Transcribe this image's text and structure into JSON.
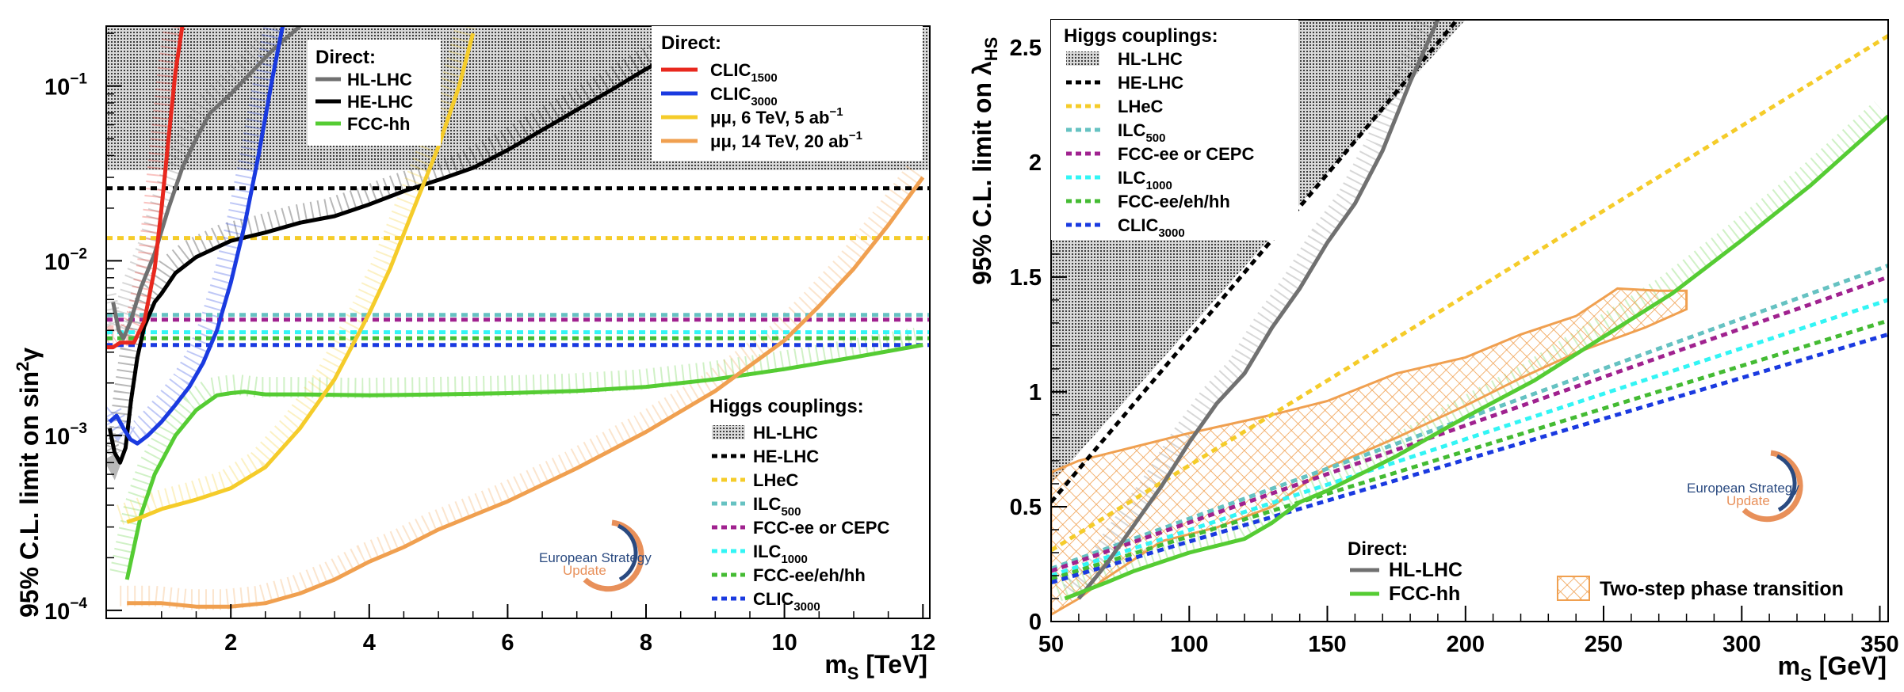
{
  "chart_data": [
    {
      "type": "line",
      "scale_y": "log",
      "xlabel": "m_S [TeV]",
      "ylabel": "95% C.L. limit on sin²γ",
      "xlim": [
        0.2,
        12.1
      ],
      "ylim": [
        9e-05,
        0.22
      ],
      "x_ticks": [
        2,
        4,
        6,
        8,
        10,
        12
      ],
      "x_tick_labels": [
        "2",
        "4",
        "6",
        "8",
        "10",
        "12"
      ],
      "y_ticks": [
        0.0001,
        0.001,
        0.01,
        0.1
      ],
      "y_tick_labels": [
        "10",
        "10",
        "10",
        "10"
      ],
      "y_tick_exponents": [
        "−4",
        "−3",
        "−2",
        "−1"
      ],
      "hllhc_band_min": 0.033,
      "direct_series": [
        {
          "name": "HL-LHC",
          "color": "#707070",
          "x": [
            0.3,
            0.38,
            0.45,
            0.55,
            0.7,
            0.9,
            1.1,
            1.3,
            1.5,
            1.7,
            2.0,
            2.3,
            2.6,
            3.0
          ],
          "values": [
            0.0058,
            0.004,
            0.0036,
            0.0045,
            0.007,
            0.011,
            0.02,
            0.034,
            0.05,
            0.07,
            0.09,
            0.12,
            0.16,
            0.22
          ]
        },
        {
          "name": "HE-LHC",
          "color": "#000000",
          "x": [
            0.25,
            0.32,
            0.4,
            0.48,
            0.56,
            0.65,
            0.75,
            0.9,
            1.0,
            1.2,
            1.5,
            2.0,
            2.5,
            3.0,
            3.5,
            4.0,
            4.5,
            5.0,
            5.5,
            6.0,
            6.5,
            7.0,
            7.5,
            8.0,
            8.5,
            9.0,
            9.3
          ],
          "values": [
            0.0011,
            0.0008,
            0.0007,
            0.00085,
            0.0016,
            0.0028,
            0.0042,
            0.0058,
            0.0065,
            0.0085,
            0.0105,
            0.013,
            0.0145,
            0.0165,
            0.018,
            0.021,
            0.025,
            0.029,
            0.034,
            0.043,
            0.056,
            0.073,
            0.095,
            0.125,
            0.16,
            0.2,
            0.22
          ]
        },
        {
          "name": "FCC-hh",
          "color": "#55cc33",
          "x": [
            0.5,
            0.7,
            0.9,
            1.2,
            1.5,
            1.8,
            2.0,
            2.2,
            2.5,
            3.0,
            4.0,
            5.0,
            6.0,
            7.0,
            8.0,
            9.0,
            10.0,
            11.0,
            12.0
          ],
          "values": [
            0.00015,
            0.00035,
            0.0006,
            0.001,
            0.0014,
            0.0017,
            0.00175,
            0.00178,
            0.00172,
            0.00172,
            0.0017,
            0.00172,
            0.00175,
            0.0018,
            0.0019,
            0.0021,
            0.0024,
            0.0028,
            0.0033
          ]
        }
      ],
      "direct_future": [
        {
          "name": "CLIC",
          "sub": "1500",
          "color": "#e8281e",
          "x": [
            0.2,
            0.3,
            0.4,
            0.5,
            0.6,
            0.75,
            0.9,
            1.0,
            1.1,
            1.2,
            1.3
          ],
          "values": [
            0.0032,
            0.0032,
            0.0034,
            0.0034,
            0.0034,
            0.0045,
            0.009,
            0.02,
            0.05,
            0.12,
            0.22
          ]
        },
        {
          "name": "CLIC",
          "sub": "3000",
          "color": "#1a3ae0",
          "x": [
            0.25,
            0.35,
            0.45,
            0.55,
            0.65,
            0.8,
            1.0,
            1.2,
            1.4,
            1.6,
            1.8,
            2.0,
            2.2,
            2.4,
            2.6,
            2.75
          ],
          "values": [
            0.0012,
            0.0013,
            0.0011,
            0.00095,
            0.0009,
            0.001,
            0.0012,
            0.0015,
            0.0019,
            0.0026,
            0.004,
            0.0075,
            0.016,
            0.04,
            0.11,
            0.22
          ]
        },
        {
          "name": "μμ, 6 TeV, 5 ab",
          "sup": "−1",
          "color": "#f5cc2a",
          "x": [
            0.5,
            0.7,
            1.0,
            1.5,
            2.0,
            2.5,
            3.0,
            3.5,
            4.0,
            4.3,
            4.6,
            5.0,
            5.3,
            5.5
          ],
          "values": [
            0.00032,
            0.00034,
            0.00038,
            0.00043,
            0.0005,
            0.00066,
            0.0011,
            0.0021,
            0.005,
            0.009,
            0.018,
            0.045,
            0.1,
            0.2
          ]
        },
        {
          "name": "μμ, 14 TeV, 20 ab",
          "sup": "−1",
          "color": "#f0a050",
          "x": [
            0.5,
            0.8,
            1.0,
            1.5,
            2.0,
            2.5,
            3.0,
            3.5,
            4.0,
            4.5,
            5.0,
            6.0,
            7.0,
            8.0,
            9.0,
            10.0,
            10.5,
            11.0,
            11.5,
            12.0
          ],
          "values": [
            0.00011,
            0.00011,
            0.00011,
            0.000105,
            0.000105,
            0.00011,
            0.000125,
            0.00015,
            0.00019,
            0.00023,
            0.00029,
            0.00042,
            0.00065,
            0.00105,
            0.0018,
            0.0035,
            0.0055,
            0.009,
            0.016,
            0.03
          ]
        }
      ],
      "coupling_series": [
        {
          "name": "HE-LHC",
          "color": "#000000",
          "value": 0.026
        },
        {
          "name": "LHeC",
          "color": "#f5cc2a",
          "value": 0.0135
        },
        {
          "name": "ILC",
          "sub": "500",
          "color": "#66c2c2",
          "value": 0.0049
        },
        {
          "name": "FCC-ee or CEPC",
          "color": "#a0228f",
          "value": 0.0046
        },
        {
          "name": "ILC",
          "sub": "1000",
          "color": "#33f5f5",
          "value": 0.0039
        },
        {
          "name": "FCC-ee/eh/hh",
          "color": "#44bb33",
          "value": 0.0036
        },
        {
          "name": "CLIC",
          "sub": "3000",
          "color": "#1a3ae0",
          "value": 0.0033
        }
      ],
      "legend_direct_title": "Direct:",
      "legend_direct_hl": [
        {
          "name": "HL-LHC",
          "color": "#707070"
        },
        {
          "name": "HE-LHC",
          "color": "#000000"
        },
        {
          "name": "FCC-hh",
          "color": "#55cc33"
        }
      ],
      "legend_direct_future_title": "Direct:",
      "legend_couplings_title": "Higgs couplings:",
      "legend_couplings_band": "HL-LHC"
    },
    {
      "type": "line",
      "xlabel": "m_S [GeV]",
      "ylabel": "95% C.L. limit on λ_HS",
      "xlim": [
        50,
        353
      ],
      "ylim": [
        0,
        2.62
      ],
      "x_ticks": [
        50,
        100,
        150,
        200,
        250,
        300,
        350
      ],
      "x_tick_labels": [
        "50",
        "100",
        "150",
        "200",
        "250",
        "300",
        "350"
      ],
      "y_ticks": [
        0,
        0.5,
        1,
        1.5,
        2,
        2.5
      ],
      "y_tick_labels": [
        "0",
        "0.5",
        "1",
        "1.5",
        "2",
        "2.5"
      ],
      "hllhc_band_boundary": [
        [
          50,
          0.6
        ],
        [
          150,
          1.95
        ],
        [
          200,
          2.62
        ]
      ],
      "coupling_series": [
        {
          "name": "HE-LHC",
          "color": "#000000",
          "x": [
            50,
            197
          ],
          "values": [
            0.52,
            2.62
          ]
        },
        {
          "name": "LHeC",
          "color": "#f5cc2a",
          "x": [
            50,
            353
          ],
          "values": [
            0.31,
            2.55
          ]
        },
        {
          "name": "ILC",
          "sub": "500",
          "color": "#66c2c2",
          "x": [
            50,
            353
          ],
          "values": [
            0.23,
            1.55
          ]
        },
        {
          "name": "FCC-ee or CEPC",
          "color": "#a0228f",
          "x": [
            50,
            353
          ],
          "values": [
            0.22,
            1.5
          ]
        },
        {
          "name": "ILC",
          "sub": "1000",
          "color": "#33f5f5",
          "x": [
            50,
            353
          ],
          "values": [
            0.2,
            1.4
          ]
        },
        {
          "name": "FCC-ee/eh/hh",
          "color": "#44bb33",
          "x": [
            50,
            353
          ],
          "values": [
            0.185,
            1.31
          ]
        },
        {
          "name": "CLIC",
          "sub": "3000",
          "color": "#1a3ae0",
          "x": [
            50,
            353
          ],
          "values": [
            0.17,
            1.25
          ]
        }
      ],
      "direct_series": [
        {
          "name": "HL-LHC",
          "color": "#707070",
          "x": [
            60,
            70,
            80,
            90,
            100,
            110,
            120,
            130,
            140,
            150,
            160,
            170,
            180,
            190
          ],
          "values": [
            0.1,
            0.25,
            0.42,
            0.59,
            0.78,
            0.95,
            1.08,
            1.28,
            1.45,
            1.65,
            1.82,
            2.05,
            2.35,
            2.62
          ]
        },
        {
          "name": "FCC-hh",
          "color": "#55cc33",
          "x": [
            55,
            70,
            80,
            100,
            110,
            120,
            130,
            140,
            150,
            175,
            200,
            225,
            250,
            275,
            300,
            325,
            353
          ],
          "values": [
            0.1,
            0.17,
            0.22,
            0.3,
            0.33,
            0.36,
            0.43,
            0.52,
            0.57,
            0.72,
            0.89,
            1.05,
            1.24,
            1.43,
            1.66,
            1.9,
            2.2
          ]
        }
      ],
      "two_step_region": [
        [
          50,
          0.65
        ],
        [
          60,
          0.7
        ],
        [
          80,
          0.76
        ],
        [
          100,
          0.82
        ],
        [
          130,
          0.9
        ],
        [
          150,
          0.96
        ],
        [
          175,
          1.08
        ],
        [
          200,
          1.15
        ],
        [
          220,
          1.25
        ],
        [
          240,
          1.33
        ],
        [
          255,
          1.45
        ],
        [
          270,
          1.44
        ],
        [
          280,
          1.44
        ],
        [
          280,
          1.36
        ],
        [
          265,
          1.28
        ],
        [
          240,
          1.17
        ],
        [
          220,
          1.06
        ],
        [
          200,
          0.94
        ],
        [
          175,
          0.8
        ],
        [
          150,
          0.67
        ],
        [
          130,
          0.5
        ],
        [
          110,
          0.41
        ],
        [
          90,
          0.35
        ],
        [
          70,
          0.19
        ],
        [
          60,
          0.1
        ],
        [
          50,
          0.03
        ]
      ],
      "two_step_label": "Two-step phase transition",
      "two_step_color": "#f0a050",
      "legend_couplings_title": "Higgs couplings:",
      "legend_couplings_band": "HL-LHC",
      "legend_direct_title": "Direct:",
      "legend_direct": [
        {
          "name": "HL-LHC",
          "color": "#707070"
        },
        {
          "name": "FCC-hh",
          "color": "#55cc33"
        }
      ]
    }
  ],
  "logo": {
    "line1": "European Strategy",
    "line2": "Update",
    "color1": "#2a4a80",
    "color2": "#e8905a"
  }
}
